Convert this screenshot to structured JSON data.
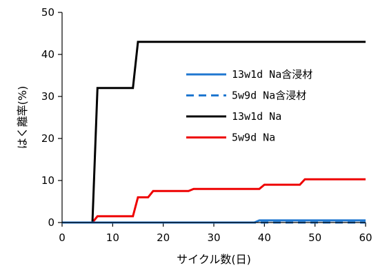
{
  "chart_data": {
    "type": "line",
    "xlabel": "サイクル数(日)",
    "ylabel": "はく離率(%)",
    "xlim": [
      0,
      60
    ],
    "ylim": [
      0,
      50
    ],
    "xticks": [
      0,
      10,
      20,
      30,
      40,
      50,
      60
    ],
    "yticks": [
      0,
      10,
      20,
      30,
      40,
      50
    ],
    "grid": false,
    "legend_position": "right",
    "series": [
      {
        "name": "13w1d Na含浸材",
        "color": "#1f77d0",
        "dash": "solid",
        "x": [
          0,
          38,
          39,
          60
        ],
        "y": [
          0,
          0,
          0.5,
          0.5
        ]
      },
      {
        "name": "5w9d Na含浸材",
        "color": "#1f77d0",
        "dash": "dashed",
        "x": [
          0,
          60
        ],
        "y": [
          0,
          0
        ]
      },
      {
        "name": "13w1d Na",
        "color": "#000000",
        "dash": "solid",
        "x": [
          0,
          6,
          7,
          14,
          15,
          60
        ],
        "y": [
          0,
          0,
          32,
          32,
          43,
          43
        ]
      },
      {
        "name": "5w9d Na",
        "color": "#ee0000",
        "dash": "solid",
        "x": [
          0,
          6,
          7,
          14,
          15,
          16,
          17,
          18,
          25,
          26,
          39,
          40,
          46,
          47,
          48,
          60
        ],
        "y": [
          0,
          0,
          1.5,
          1.5,
          6,
          6,
          6,
          7.5,
          7.5,
          8,
          8,
          9,
          9,
          9,
          10.3,
          10.3
        ]
      }
    ]
  }
}
